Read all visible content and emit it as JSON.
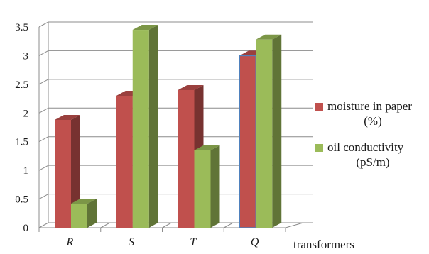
{
  "chart_data": {
    "type": "bar",
    "title": "",
    "xlabel": "transformers",
    "ylabel": "",
    "categories": [
      "R",
      "S",
      "T",
      "Q"
    ],
    "series": [
      {
        "name": "moisture in paper (%)",
        "legend_lines": [
          "moisture in paper",
          "(%)"
        ],
        "color": "#C0504D",
        "values": [
          1.88,
          2.3,
          2.4,
          3.0
        ]
      },
      {
        "name": "oil conductivity (pS/m)",
        "legend_lines": [
          "oil conductivity",
          "(pS/m)"
        ],
        "color": "#9BBB59",
        "values": [
          0.42,
          3.45,
          1.35,
          3.28
        ]
      }
    ],
    "ylim": [
      0,
      3.5
    ],
    "yticks": [
      "0",
      "0.5",
      "1",
      "1.5",
      "2",
      "2.5",
      "3",
      "3.5"
    ],
    "grid": true,
    "legend_position": "right",
    "three_d": true,
    "highlighted_bar": {
      "category": "Q",
      "series": 0,
      "outline_color": "#4F81BD"
    }
  }
}
